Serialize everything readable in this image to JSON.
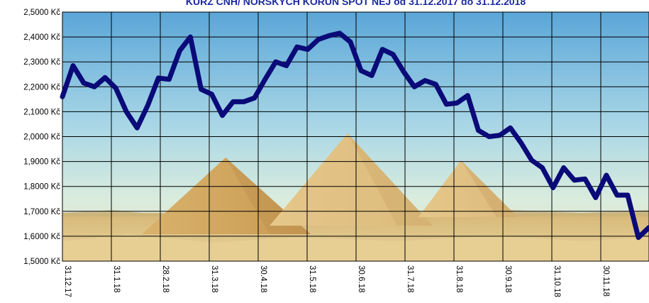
{
  "chart_data": {
    "type": "line",
    "title": "KURZ ČNH/ NORSKÝCH KORUN SPOT NEJ od 31.12.2017 do 31.12.2018",
    "xlabel": "",
    "ylabel": "",
    "ylim": [
      1.5,
      2.5
    ],
    "grid": true,
    "y_ticks": [
      "1,5000 Kč",
      "1,6000 Kč",
      "1,7000 Kč",
      "1,8000 Kč",
      "1,9000 Kč",
      "2,0000 Kč",
      "2,1000 Kč",
      "2,2000 Kč",
      "2,3000 Kč",
      "2,4000 Kč",
      "2,5000 Kč"
    ],
    "x_ticks": [
      "31.12.17",
      "31.1.18",
      "28.2.18",
      "31.3.18",
      "30.4.18",
      "31.5.18",
      "30.6.18",
      "31.7.18",
      "31.8.18",
      "30.9.18",
      "31.10.18",
      "30.11.18",
      "31.12.18"
    ],
    "series": [
      {
        "color": "#0a0a78",
        "values": [
          2.16,
          2.285,
          2.215,
          2.2,
          2.237,
          2.195,
          2.1,
          2.035,
          2.125,
          2.235,
          2.23,
          2.345,
          2.4,
          2.19,
          2.17,
          2.085,
          2.14,
          2.14,
          2.155,
          2.23,
          2.3,
          2.285,
          2.36,
          2.35,
          2.39,
          2.405,
          2.415,
          2.38,
          2.265,
          2.245,
          2.35,
          2.33,
          2.26,
          2.2,
          2.225,
          2.21,
          2.13,
          2.135,
          2.165,
          2.025,
          2.0,
          2.005,
          2.035,
          1.975,
          1.905,
          1.875,
          1.795,
          1.875,
          1.825,
          1.83,
          1.755,
          1.845,
          1.765,
          1.765,
          1.595,
          1.635
        ]
      }
    ]
  }
}
